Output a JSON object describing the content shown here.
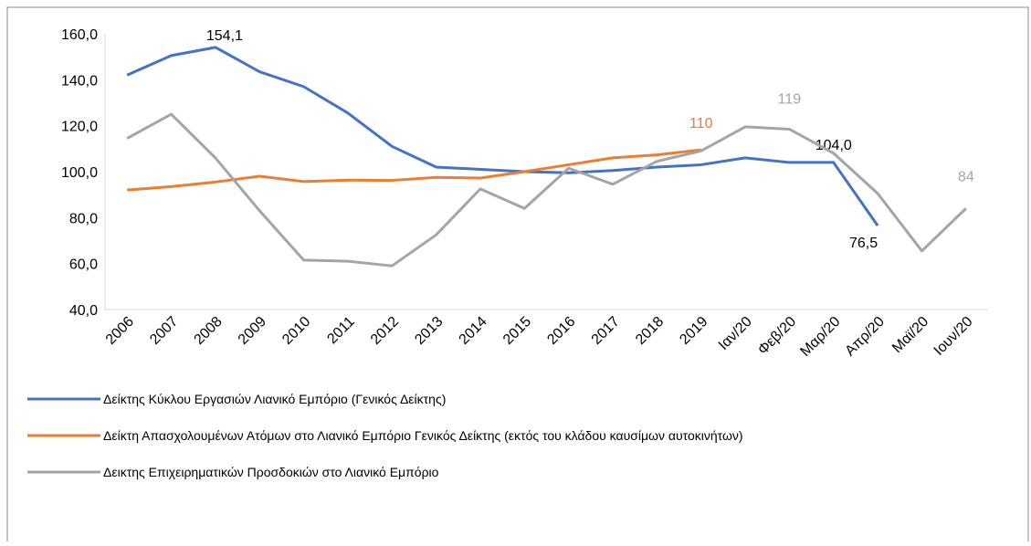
{
  "chart_data": {
    "type": "line",
    "categories": [
      "2006",
      "2007",
      "2008",
      "2009",
      "2010",
      "2011",
      "2012",
      "2013",
      "2014",
      "2015",
      "2016",
      "2017",
      "2018",
      "2019",
      "Ιαν/20",
      "Φεβ/20",
      "Μαρ/20",
      "Απρ/20",
      "Μαϊ/20",
      "Ιουν/20"
    ],
    "series": [
      {
        "name": "Δείκτης Κύκλου Εργασιών Λιανικό Εμπόριο (Γενικός Δείκτης)",
        "color": "#4472c4",
        "values": [
          142,
          150.5,
          154.1,
          143.5,
          137,
          125.5,
          111,
          102,
          101,
          100,
          99.5,
          100.5,
          102,
          103,
          106,
          104,
          104,
          76.5,
          null,
          null
        ],
        "value_labels": [
          null,
          null,
          "154,1",
          null,
          null,
          null,
          null,
          null,
          null,
          null,
          null,
          null,
          null,
          null,
          null,
          null,
          "104,0",
          "76,5",
          null,
          null
        ],
        "label_color": "#000000"
      },
      {
        "name": "Δείκτη Απασχολουμένων Ατόμων στο Λιανικό Εμπόριο Γενικός Δείκτης  (εκτός του κλάδου καυσίμων αυτοκινήτων)",
        "color": "#ed7d31",
        "values": [
          92,
          93.5,
          95.5,
          98,
          95.7,
          96.3,
          96.2,
          97.5,
          97.2,
          100,
          103,
          106,
          107.3,
          109.5,
          null,
          null,
          null,
          null,
          null,
          null
        ],
        "value_labels": [
          null,
          null,
          null,
          null,
          null,
          null,
          null,
          null,
          null,
          null,
          null,
          null,
          null,
          "110",
          null,
          null,
          null,
          null,
          null,
          null
        ],
        "label_color": "#ed7d31"
      },
      {
        "name": "Δεικτης Επιχειρηματικών Προσδοκιών στο Λιανικό Εμπόριο",
        "color": "#a5a5a5",
        "values": [
          114.5,
          125,
          106,
          83,
          61.5,
          61,
          59,
          72.5,
          92.5,
          84,
          101.5,
          94.5,
          104.5,
          109,
          119.5,
          118.5,
          108,
          90.5,
          65.5,
          84
        ],
        "value_labels": [
          null,
          null,
          null,
          null,
          null,
          null,
          null,
          null,
          null,
          null,
          null,
          null,
          null,
          null,
          null,
          "119",
          null,
          null,
          null,
          "84"
        ],
        "label_color": "#a5a5a5"
      }
    ],
    "ylim": [
      40,
      160
    ],
    "yticks": [
      {
        "value": 40,
        "label": "40,0"
      },
      {
        "value": 60,
        "label": "60,0"
      },
      {
        "value": 80,
        "label": "80,0"
      },
      {
        "value": 100,
        "label": "100,0"
      },
      {
        "value": 120,
        "label": "120,0"
      },
      {
        "value": 140,
        "label": "140,0"
      },
      {
        "value": 160,
        "label": "160,0"
      }
    ],
    "grid": false,
    "legend": "bottom"
  }
}
